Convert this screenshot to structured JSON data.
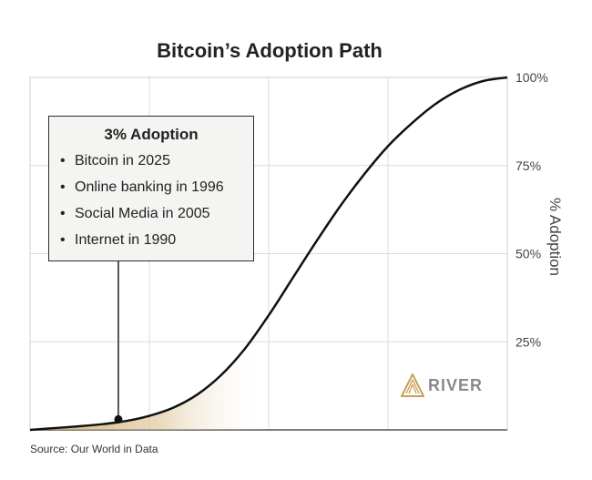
{
  "chart_data": {
    "type": "area",
    "title": "Bitcoin’s Adoption Path",
    "ylabel": "% Adoption",
    "xlabel": "",
    "y_ticks": [
      "25%",
      "50%",
      "75%",
      "100%"
    ],
    "ylim": [
      0,
      100
    ],
    "grid": true,
    "series": [
      {
        "x": [
          0,
          5,
          10,
          15,
          20,
          25,
          30,
          35,
          40,
          45,
          50,
          55,
          60,
          65,
          70,
          75,
          80,
          85,
          90,
          95,
          100
        ],
        "values": [
          0,
          0.5,
          1.0,
          1.6,
          2.5,
          4.0,
          6.3,
          10.0,
          15.5,
          23.0,
          32.5,
          43.0,
          53.5,
          63.5,
          72.5,
          80.5,
          87.0,
          92.5,
          96.5,
          99.0,
          100
        ]
      }
    ],
    "highlight_point": {
      "x": 18.5,
      "y": 3
    }
  },
  "callout": {
    "title": "3% Adoption",
    "items": [
      "Bitcoin in 2025",
      "Online banking in 1996",
      "Social Media in 2005",
      "Internet in 1990"
    ],
    "bullet": "•"
  },
  "brand": {
    "name": "RIVER",
    "icon": "river-logo-icon"
  },
  "source": "Source: Our World in Data",
  "colors": {
    "curve": "#111111",
    "fill": "#c9a05a",
    "grid": "#dcdcdc",
    "axis": "#555555"
  }
}
